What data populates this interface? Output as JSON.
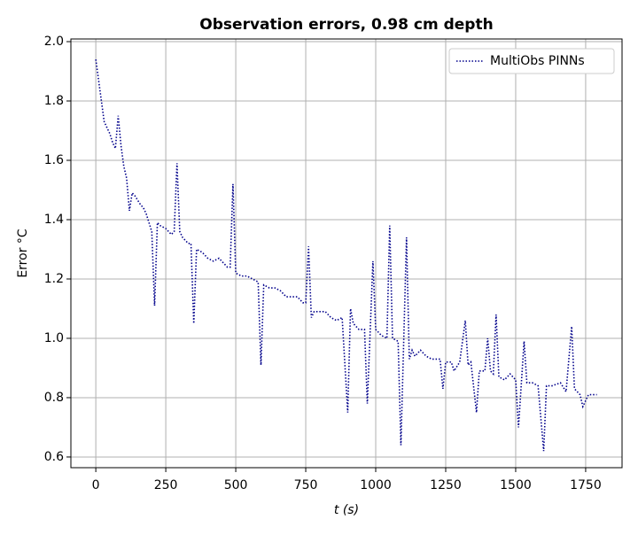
{
  "chart_data": {
    "type": "line",
    "title": "Observation errors, 0.98 cm depth",
    "xlabel": "t (s)",
    "ylabel": "Error °C",
    "x": [
      0,
      10,
      20,
      30,
      50,
      60,
      70,
      80,
      90,
      100,
      110,
      120,
      130,
      140,
      160,
      170,
      180,
      190,
      200,
      210,
      220,
      230,
      250,
      260,
      270,
      280,
      290,
      300,
      310,
      330,
      340,
      350,
      360,
      380,
      400,
      420,
      440,
      460,
      470,
      480,
      490,
      500,
      520,
      540,
      560,
      580,
      590,
      600,
      620,
      640,
      660,
      680,
      700,
      720,
      740,
      750,
      760,
      770,
      780,
      800,
      820,
      840,
      860,
      880,
      900,
      910,
      920,
      940,
      960,
      970,
      990,
      1000,
      1020,
      1040,
      1050,
      1060,
      1080,
      1090,
      1110,
      1120,
      1130,
      1140,
      1160,
      1180,
      1200,
      1230,
      1240,
      1250,
      1270,
      1280,
      1300,
      1320,
      1330,
      1340,
      1360,
      1370,
      1390,
      1400,
      1410,
      1420,
      1430,
      1440,
      1460,
      1480,
      1500,
      1510,
      1530,
      1540,
      1560,
      1580,
      1600,
      1610,
      1630,
      1660,
      1680,
      1700,
      1710,
      1730,
      1740,
      1760,
      1780,
      1790
    ],
    "series": [
      {
        "name": "MultiObs PINNs",
        "color": "#00008b",
        "values": [
          1.94,
          1.87,
          1.8,
          1.73,
          1.69,
          1.66,
          1.64,
          1.75,
          1.65,
          1.58,
          1.54,
          1.43,
          1.49,
          1.48,
          1.45,
          1.44,
          1.42,
          1.39,
          1.36,
          1.11,
          1.39,
          1.38,
          1.37,
          1.36,
          1.35,
          1.36,
          1.59,
          1.36,
          1.34,
          1.32,
          1.32,
          1.05,
          1.3,
          1.29,
          1.27,
          1.26,
          1.27,
          1.25,
          1.24,
          1.24,
          1.52,
          1.22,
          1.21,
          1.21,
          1.2,
          1.19,
          0.91,
          1.18,
          1.17,
          1.17,
          1.16,
          1.14,
          1.14,
          1.14,
          1.12,
          1.12,
          1.31,
          1.07,
          1.09,
          1.09,
          1.09,
          1.07,
          1.06,
          1.07,
          0.75,
          1.1,
          1.05,
          1.03,
          1.03,
          0.78,
          1.26,
          1.03,
          1.01,
          1.0,
          1.38,
          1.0,
          0.99,
          0.64,
          1.34,
          0.93,
          0.96,
          0.94,
          0.96,
          0.94,
          0.93,
          0.93,
          0.83,
          0.92,
          0.92,
          0.89,
          0.92,
          1.06,
          0.91,
          0.92,
          0.75,
          0.89,
          0.89,
          1.0,
          0.89,
          0.88,
          1.08,
          0.87,
          0.86,
          0.88,
          0.86,
          0.7,
          0.99,
          0.85,
          0.85,
          0.84,
          0.62,
          0.84,
          0.84,
          0.85,
          0.82,
          1.04,
          0.83,
          0.81,
          0.77,
          0.81,
          0.81,
          0.81
        ]
      }
    ],
    "xlim": [
      -89,
      1880
    ],
    "ylim": [
      0.564,
      2.009
    ],
    "xticks": [
      0,
      250,
      500,
      750,
      1000,
      1250,
      1500,
      1750
    ],
    "yticks": [
      0.6,
      0.8,
      {
        "value": 1,
        "label": "1.0"
      },
      1.2,
      1.4,
      1.6,
      1.8,
      {
        "value": 2,
        "label": "2.0"
      }
    ],
    "grid": true,
    "legend": "upper-right",
    "line_style": "dotted"
  }
}
